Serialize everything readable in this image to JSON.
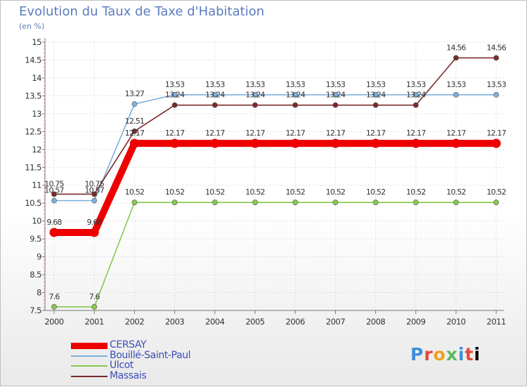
{
  "chart_data": {
    "type": "line",
    "title": "Evolution du Taux de Taxe d'Habitation",
    "ylabel": "(en %)",
    "xlabel": "",
    "ylim": [
      7.5,
      15
    ],
    "yticks": [
      "7.5",
      "8",
      "8.5",
      "9",
      "9.5",
      "10",
      "10.5",
      "11",
      "11.5",
      "12",
      "12.5",
      "13",
      "13.5",
      "14",
      "14.5",
      "15"
    ],
    "categories": [
      "2000",
      "2001",
      "2002",
      "2003",
      "2004",
      "2005",
      "2006",
      "2007",
      "2008",
      "2009",
      "2010",
      "2011"
    ],
    "series": [
      {
        "name": "Ulcot",
        "color": "#88c94e",
        "values": [
          7.6,
          7.6,
          10.52,
          10.52,
          10.52,
          10.52,
          10.52,
          10.52,
          10.52,
          10.52,
          10.52,
          10.52
        ],
        "labels": [
          "7.6",
          "7.6",
          "10.52",
          "10.52",
          "10.52",
          "10.52",
          "10.52",
          "10.52",
          "10.52",
          "10.52",
          "10.52",
          "10.52"
        ]
      },
      {
        "name": "Bouillé-Saint-Paul",
        "color": "#7bb0dd",
        "values": [
          10.57,
          10.57,
          13.27,
          13.53,
          13.53,
          13.53,
          13.53,
          13.53,
          13.53,
          13.53,
          13.53,
          13.53
        ],
        "labels": [
          "10.57",
          "10.57",
          "13.27",
          "13.53",
          "13.53",
          "13.53",
          "13.53",
          "13.53",
          "13.53",
          "13.53",
          "13.53",
          "13.53"
        ]
      },
      {
        "name": "Massais",
        "color": "#7a2a2a",
        "values": [
          10.75,
          10.75,
          12.51,
          13.24,
          13.24,
          13.24,
          13.24,
          13.24,
          13.24,
          13.24,
          14.56,
          14.56
        ],
        "labels": [
          "10.75",
          "10.75",
          "12.51",
          "13.24",
          "13.24",
          "13.24",
          "13.24",
          "13.24",
          "13.24",
          "13.24",
          "14.56",
          "14.56"
        ]
      },
      {
        "name": "CERSAY",
        "color": "#ee0000",
        "values": [
          9.68,
          9.68,
          12.17,
          12.17,
          12.17,
          12.17,
          12.17,
          12.17,
          12.17,
          12.17,
          12.17,
          12.17
        ],
        "labels": [
          "9.68",
          "9.68",
          "12.17",
          "12.17",
          "12.17",
          "12.17",
          "12.17",
          "12.17",
          "12.17",
          "12.17",
          "12.17",
          "12.17"
        ]
      }
    ],
    "legend": [
      "CERSAY",
      "Bouillé-Saint-Paul",
      "Ulcot",
      "Massais"
    ],
    "legend_position": "bottom-left"
  },
  "logo": {
    "letters": [
      "P",
      "r",
      "o",
      "x",
      "i",
      "t",
      "i"
    ]
  }
}
